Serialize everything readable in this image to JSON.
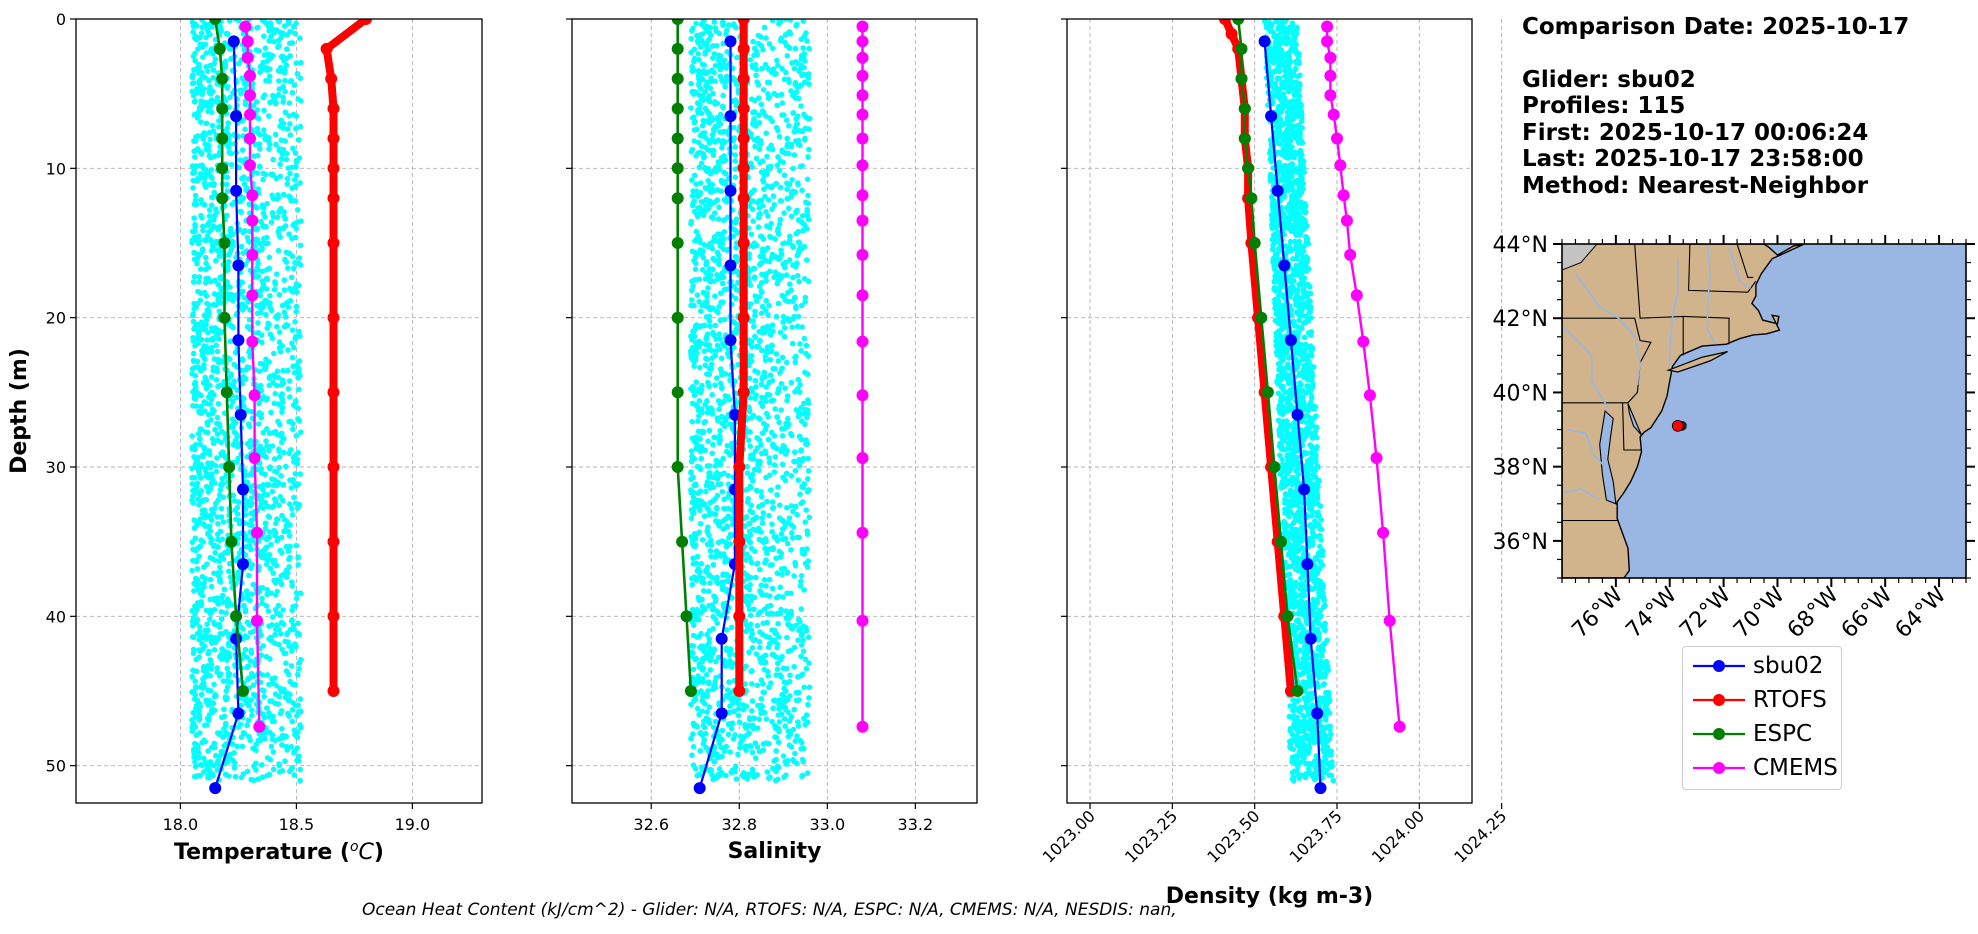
{
  "info": {
    "date_line": "Comparison Date: 2025-10-17",
    "glider_line": "Glider: sbu02",
    "profiles_line": "Profiles: 115",
    "first_line": "First: 2025-10-17 00:06:24",
    "last_line": "Last: 2025-10-17 23:58:00",
    "method_line": "Method: Nearest-Neighbor"
  },
  "footer": "Ocean Heat Content (kJ/cm^2) - Glider: N/A,  RTOFS: N/A,  ESPC: N/A,  CMEMS: N/A,  NESDIS: nan,",
  "colors": {
    "sbu02": "#0000ff",
    "rtofs": "#ff0000",
    "espc": "#008000",
    "cmems": "#ff00ff",
    "raw": "#00ffff",
    "land": "#d2b48c",
    "ocean": "#9ab7e3",
    "grid": "#b0b0b0"
  },
  "legend": [
    {
      "label": "sbu02",
      "color": "#0000ff"
    },
    {
      "label": "RTOFS",
      "color": "#ff0000"
    },
    {
      "label": "ESPC",
      "color": "#008000"
    },
    {
      "label": "CMEMS",
      "color": "#ff00ff"
    }
  ],
  "chart_data": [
    {
      "type": "line",
      "title": "",
      "xlabel": "Temperature",
      "xlabel_sup": "o",
      "xlabel_unit": "C",
      "ylabel": "Depth (m)",
      "xlim": [
        17.55,
        19.3
      ],
      "ylim": [
        52.5,
        0
      ],
      "xticks": [
        18.0,
        18.5,
        19.0
      ],
      "xtick_labels": [
        "18.0",
        "18.5",
        "19.0"
      ],
      "yticks": [
        0,
        10,
        20,
        30,
        40,
        50
      ],
      "ytick_labels": [
        "0",
        "10",
        "20",
        "30",
        "40",
        "50"
      ],
      "grid": true,
      "raw_scatter": {
        "name": "glider profiles",
        "x_min": 18.05,
        "x_max": 18.52,
        "depth_max": 51
      },
      "series": [
        {
          "name": "sbu02",
          "depth": [
            1.5,
            6.5,
            11.5,
            16.5,
            21.5,
            26.5,
            31.5,
            36.5,
            41.5,
            46.5,
            51.5
          ],
          "values": [
            18.23,
            18.24,
            18.24,
            18.25,
            18.25,
            18.26,
            18.27,
            18.27,
            18.24,
            18.25,
            18.15
          ]
        },
        {
          "name": "RTOFS",
          "depth": [
            0,
            2,
            4,
            6,
            8,
            10,
            12,
            15,
            20,
            25,
            30,
            35,
            40,
            45
          ],
          "values": [
            18.8,
            18.63,
            18.65,
            18.66,
            18.66,
            18.66,
            18.66,
            18.66,
            18.66,
            18.66,
            18.66,
            18.66,
            18.66,
            18.66
          ]
        },
        {
          "name": "ESPC",
          "depth": [
            0,
            2,
            4,
            6,
            8,
            10,
            12,
            15,
            20,
            25,
            30,
            35,
            40,
            45
          ],
          "values": [
            18.15,
            18.17,
            18.18,
            18.18,
            18.18,
            18.18,
            18.18,
            18.19,
            18.19,
            18.2,
            18.21,
            18.22,
            18.24,
            18.27
          ]
        },
        {
          "name": "CMEMS",
          "depth": [
            0.5,
            1.5,
            2.6,
            3.8,
            5.1,
            6.4,
            8.0,
            9.8,
            11.8,
            13.5,
            15.8,
            18.5,
            21.6,
            25.2,
            29.4,
            34.4,
            40.3,
            47.4
          ],
          "values": [
            18.28,
            18.29,
            18.29,
            18.3,
            18.3,
            18.3,
            18.3,
            18.3,
            18.31,
            18.31,
            18.31,
            18.31,
            18.31,
            18.32,
            18.32,
            18.33,
            18.33,
            18.34
          ]
        }
      ]
    },
    {
      "type": "line",
      "title": "",
      "xlabel": "Salinity",
      "xlim": [
        32.42,
        33.34
      ],
      "ylim": [
        52.5,
        0
      ],
      "xticks": [
        32.6,
        32.8,
        33.0,
        33.2
      ],
      "xtick_labels": [
        "32.6",
        "32.8",
        "33.0",
        "33.2"
      ],
      "yticks": [
        0,
        10,
        20,
        30,
        40,
        50
      ],
      "grid": true,
      "raw_scatter": {
        "name": "glider profiles",
        "x_min": 32.69,
        "x_max": 32.96,
        "depth_max": 51
      },
      "series": [
        {
          "name": "sbu02",
          "depth": [
            1.5,
            6.5,
            11.5,
            16.5,
            21.5,
            26.5,
            31.5,
            36.5,
            41.5,
            46.5,
            51.5
          ],
          "values": [
            32.78,
            32.78,
            32.78,
            32.78,
            32.78,
            32.79,
            32.79,
            32.79,
            32.76,
            32.76,
            32.71
          ]
        },
        {
          "name": "RTOFS",
          "depth": [
            0,
            2,
            4,
            6,
            8,
            10,
            12,
            15,
            20,
            25,
            30,
            35,
            40,
            45
          ],
          "values": [
            32.81,
            32.81,
            32.81,
            32.81,
            32.81,
            32.81,
            32.81,
            32.81,
            32.81,
            32.81,
            32.8,
            32.8,
            32.8,
            32.8
          ]
        },
        {
          "name": "ESPC",
          "depth": [
            0,
            2,
            4,
            6,
            8,
            10,
            12,
            15,
            20,
            25,
            30,
            35,
            40,
            45
          ],
          "values": [
            32.66,
            32.66,
            32.66,
            32.66,
            32.66,
            32.66,
            32.66,
            32.66,
            32.66,
            32.66,
            32.66,
            32.67,
            32.68,
            32.69
          ]
        },
        {
          "name": "CMEMS",
          "depth": [
            0.5,
            1.5,
            2.6,
            3.8,
            5.1,
            6.4,
            8.0,
            9.8,
            11.8,
            13.5,
            15.8,
            18.5,
            21.6,
            25.2,
            29.4,
            34.4,
            40.3,
            47.4
          ],
          "values": [
            33.08,
            33.08,
            33.08,
            33.08,
            33.08,
            33.08,
            33.08,
            33.08,
            33.08,
            33.08,
            33.08,
            33.08,
            33.08,
            33.08,
            33.08,
            33.08,
            33.08,
            33.08
          ]
        }
      ]
    },
    {
      "type": "line",
      "title": "",
      "xlabel": "Density (kg m-3)",
      "xlim": [
        1022.93,
        1024.16
      ],
      "ylim": [
        52.5,
        0
      ],
      "xticks": [
        1023.0,
        1023.25,
        1023.5,
        1023.75,
        1024.0,
        1024.25
      ],
      "xtick_labels": [
        "1023.00",
        "1023.25",
        "1023.50",
        "1023.75",
        "1024.00",
        "1024.25"
      ],
      "yticks": [
        0,
        10,
        20,
        30,
        40,
        50
      ],
      "grid": true,
      "raw_scatter": {
        "name": "glider profiles",
        "x_min_top": 1023.53,
        "x_max_top": 1023.63,
        "x_min_bottom": 1023.61,
        "x_max_bottom": 1023.74,
        "depth_max": 51
      },
      "series": [
        {
          "name": "sbu02",
          "depth": [
            1.5,
            6.5,
            11.5,
            16.5,
            21.5,
            26.5,
            31.5,
            36.5,
            41.5,
            46.5,
            51.5
          ],
          "values": [
            1023.53,
            1023.55,
            1023.57,
            1023.59,
            1023.61,
            1023.63,
            1023.65,
            1023.66,
            1023.67,
            1023.69,
            1023.7
          ]
        },
        {
          "name": "RTOFS",
          "depth": [
            0,
            1,
            2,
            4,
            6,
            8,
            10,
            12,
            15,
            20,
            25,
            30,
            35,
            40,
            45
          ],
          "values": [
            1023.41,
            1023.43,
            1023.45,
            1023.46,
            1023.47,
            1023.47,
            1023.48,
            1023.48,
            1023.49,
            1023.51,
            1023.53,
            1023.55,
            1023.57,
            1023.59,
            1023.61
          ]
        },
        {
          "name": "ESPC",
          "depth": [
            0,
            2,
            4,
            6,
            8,
            10,
            12,
            15,
            20,
            25,
            30,
            35,
            40,
            45
          ],
          "values": [
            1023.45,
            1023.46,
            1023.46,
            1023.47,
            1023.47,
            1023.48,
            1023.49,
            1023.5,
            1023.52,
            1023.54,
            1023.56,
            1023.58,
            1023.6,
            1023.63
          ]
        },
        {
          "name": "CMEMS",
          "depth": [
            0.5,
            1.5,
            2.6,
            3.8,
            5.1,
            6.4,
            8.0,
            9.8,
            11.8,
            13.5,
            15.8,
            18.5,
            21.6,
            25.2,
            29.4,
            34.4,
            40.3,
            47.4
          ],
          "values": [
            1023.72,
            1023.72,
            1023.73,
            1023.73,
            1023.73,
            1023.74,
            1023.75,
            1023.76,
            1023.77,
            1023.78,
            1023.79,
            1023.81,
            1023.83,
            1023.85,
            1023.87,
            1023.89,
            1023.91,
            1023.94
          ]
        }
      ]
    },
    {
      "type": "map",
      "lon_range": [
        -78,
        -63
      ],
      "lat_range": [
        35,
        44
      ],
      "xtick_labels": [
        "76°W",
        "74°W",
        "72°W",
        "70°W",
        "68°W",
        "66°W",
        "64°W"
      ],
      "xtick_values": [
        -76,
        -74,
        -72,
        -70,
        -68,
        -66,
        -64
      ],
      "ytick_labels": [
        "44°N",
        "42°N",
        "40°N",
        "38°N",
        "36°N"
      ],
      "ytick_values": [
        44,
        42,
        40,
        38,
        36
      ],
      "glider_position": {
        "lon": -73.7,
        "lat": 39.1
      }
    }
  ]
}
